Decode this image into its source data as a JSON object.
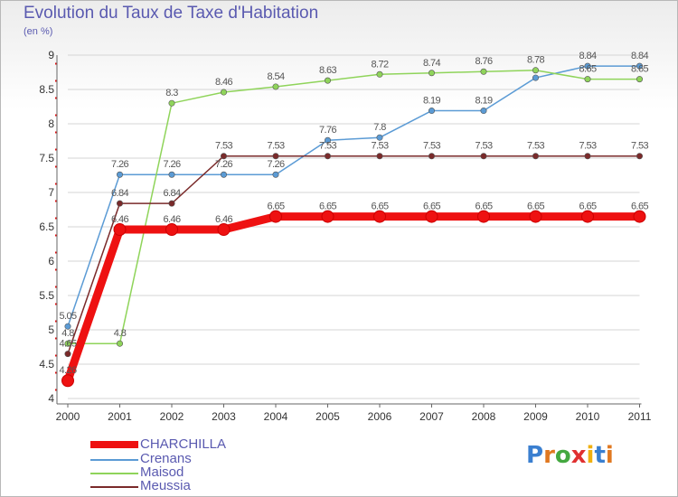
{
  "title": "Evolution du Taux de Taxe d'Habitation",
  "subtitle": "(en %)",
  "logo_text": "Proxiti",
  "colors": {
    "title": "#5a5ab0",
    "axis": "#666666",
    "grid": "#d4d4d4",
    "tick_red": "#e01010"
  },
  "chart_data": {
    "type": "line",
    "title": "Evolution du Taux de Taxe d'Habitation",
    "ylabel": "(en %)",
    "xlabel": "",
    "x": [
      "2000",
      "2001",
      "2002",
      "2003",
      "2004",
      "2005",
      "2006",
      "2007",
      "2008",
      "2009",
      "2010",
      "2011"
    ],
    "ylim": [
      4,
      9
    ],
    "yticks": [
      "4",
      "4.5",
      "5",
      "5.5",
      "6",
      "6.5",
      "7",
      "7.5",
      "8",
      "8.5",
      "9"
    ],
    "grid": "horizontal",
    "legend_position": "bottom-left",
    "series": [
      {
        "name": "Crenans",
        "color": "#5b9bd5",
        "values": [
          5.05,
          7.26,
          7.26,
          7.26,
          7.26,
          7.76,
          7.8,
          8.19,
          8.19,
          8.67,
          8.84,
          8.84
        ],
        "labels": [
          "5.05",
          "7.26",
          "7.26",
          "7.26",
          "7.26",
          "7.76",
          "7.8",
          "8.19",
          "8.19",
          "",
          "8.84",
          "8.84"
        ]
      },
      {
        "name": "Maisod",
        "color": "#8fd45a",
        "values": [
          4.8,
          4.8,
          8.3,
          8.46,
          8.54,
          8.63,
          8.72,
          8.74,
          8.76,
          8.78,
          8.65,
          8.65
        ],
        "labels": [
          "4.8",
          "4.8",
          "8.3",
          "8.46",
          "8.54",
          "8.63",
          "8.72",
          "8.74",
          "8.76",
          "8.78",
          "8.65",
          "8.65"
        ]
      },
      {
        "name": "Meussia",
        "color": "#7a2a2a",
        "values": [
          4.65,
          6.84,
          6.84,
          7.53,
          7.53,
          7.53,
          7.53,
          7.53,
          7.53,
          7.53,
          7.53,
          7.53
        ],
        "labels": [
          "4.65",
          "6.84",
          "6.84",
          "7.53",
          "7.53",
          "7.53",
          "7.53",
          "7.53",
          "7.53",
          "7.53",
          "7.53",
          "7.53"
        ]
      },
      {
        "name": "CHARCHILLA",
        "color": "#ee1111",
        "values": [
          4.26,
          6.46,
          6.46,
          6.46,
          6.65,
          6.65,
          6.65,
          6.65,
          6.65,
          6.65,
          6.65,
          6.65
        ],
        "labels": [
          "4.26",
          "6.46",
          "6.46",
          "6.46",
          "6.65",
          "6.65",
          "6.65",
          "6.65",
          "6.65",
          "6.65",
          "6.65",
          "6.65"
        ]
      }
    ],
    "legend": [
      "CHARCHILLA",
      "Crenans",
      "Maisod",
      "Meussia"
    ]
  }
}
